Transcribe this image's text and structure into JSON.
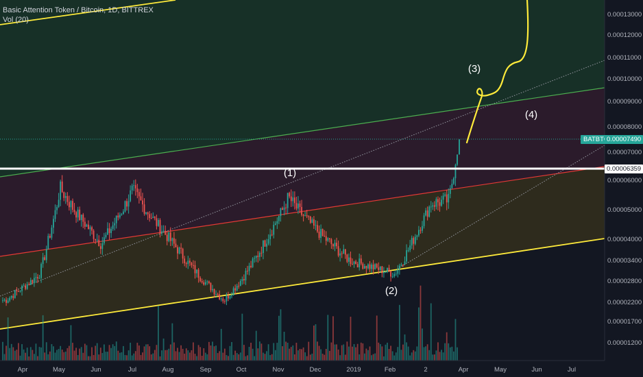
{
  "header": {
    "symbol_line": "Basic Attention Token / Bitcoin, 1D, BITTREX",
    "indicator_line": "Vol (20)"
  },
  "price_axis": {
    "labels": [
      "0.00013000",
      "0.00012000",
      "0.00011000",
      "0.00010000",
      "0.00009000",
      "0.00008000",
      "0.00007000",
      "0.00006000",
      "0.00005000",
      "0.00004000",
      "0.00003400",
      "0.00002800",
      "0.00002200",
      "0.00001700",
      "0.00001200"
    ]
  },
  "time_axis": {
    "labels": [
      "Apr",
      "May",
      "Jun",
      "Jul",
      "Aug",
      "Sep",
      "Oct",
      "Nov",
      "Dec",
      "2019",
      "Feb",
      "2",
      "Apr",
      "May",
      "Jun",
      "Jul"
    ]
  },
  "last_price_tag": {
    "symbol": "BATBTC",
    "value": "0.00007490"
  },
  "level_tag": {
    "value": "0.00006359"
  },
  "annotations": [
    "(1)",
    "(2)",
    "(3)",
    "(4)"
  ],
  "colors": {
    "background": "#131722",
    "up_candle": "#26a69a",
    "down_candle": "#ef5350",
    "upper_line": "#4caf50",
    "middle_line": "#e53935",
    "lower_line": "#ffeb3b",
    "horizontal_level": "#ffffff",
    "zone_top": "#173027",
    "zone_upper": "#2b1b2b",
    "zone_middle": "#2e2b1d",
    "projection": "#ffeb3b"
  },
  "chart_data": {
    "type": "candlestick",
    "symbol": "BATBTC",
    "exchange": "BITTREX",
    "interval": "1D",
    "scale": "log",
    "x_range": [
      "2018-03",
      "2019-07"
    ],
    "y_range": [
      1.05e-05,
      0.000145
    ],
    "horizontal_level": 6.359e-05,
    "last_price": 7.49e-05,
    "swing_points": [
      {
        "date": "2018-05-02",
        "value": 5.72e-05
      },
      {
        "date": "2018-07-01",
        "value": 5.65e-05
      },
      {
        "date": "2018-09-15",
        "value": 2.25e-05
      },
      {
        "date": "2018-11-07",
        "value": 5.4e-05
      },
      {
        "date": "2019-02-03",
        "value": 3e-05
      },
      {
        "date": "2019-03-28",
        "value": 7.49e-05
      }
    ],
    "legend": "none",
    "grid": false
  }
}
